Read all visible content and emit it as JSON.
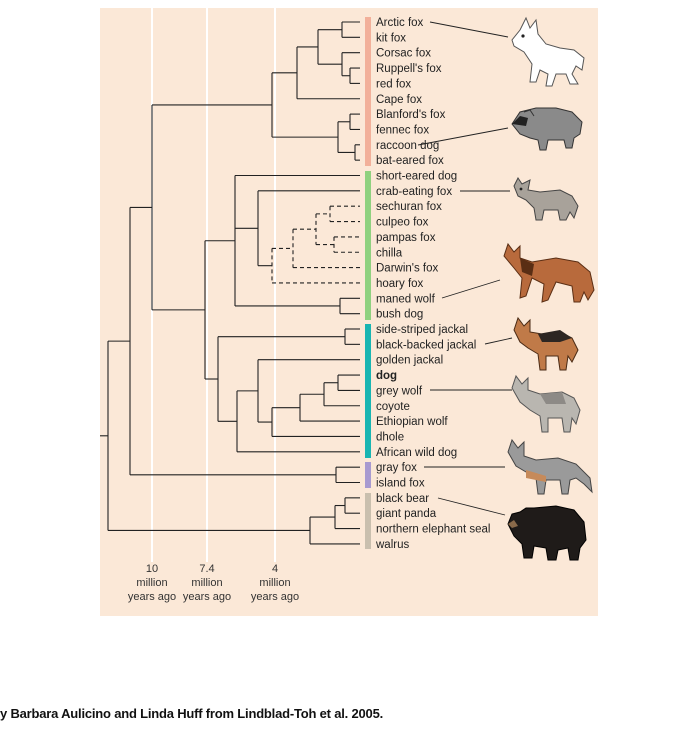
{
  "species": [
    "Arctic fox",
    "kit fox",
    "Corsac fox",
    "Ruppell's fox",
    "red fox",
    "Cape fox",
    "Blanford's fox",
    "fennec fox",
    "raccoon dog",
    "bat-eared fox",
    "short-eared dog",
    "crab-eating fox",
    "sechuran fox",
    "culpeo fox",
    "pampas fox",
    "chilla",
    "Darwin's fox",
    "hoary fox",
    "maned wolf",
    "bush dog",
    "side-striped jackal",
    "black-backed jackal",
    "golden jackal",
    "dog",
    "grey wolf",
    "coyote",
    "Ethiopian wolf",
    "dhole",
    "African wild dog",
    "gray fox",
    "island fox",
    "black bear",
    "giant panda",
    "northern elephant seal",
    "walrus"
  ],
  "highlighted_species": "dog",
  "clade_colors": {
    "red_fox_clade": "#f2b09a",
    "south_american_clade": "#8fd17f",
    "wolf_like_clade": "#19b5b2",
    "gray_fox_clade": "#a89ad0",
    "outgroup": "#c9bfae"
  },
  "time_axis": [
    {
      "value": "10",
      "unit": "million",
      "suffix": "years ago"
    },
    {
      "value": "7.4",
      "unit": "million",
      "suffix": "years ago"
    },
    {
      "value": "4",
      "unit": "million",
      "suffix": "years ago"
    }
  ],
  "illustrations": [
    {
      "name": "arctic-fox-illustration",
      "points_to": "Arctic fox"
    },
    {
      "name": "raccoon-dog-illustration",
      "points_to": "raccoon dog"
    },
    {
      "name": "crab-eating-fox-illustration",
      "points_to": "crab-eating fox"
    },
    {
      "name": "maned-wolf-illustration",
      "points_to": "maned wolf"
    },
    {
      "name": "black-backed-jackal-illustration",
      "points_to": "black-backed jackal"
    },
    {
      "name": "grey-wolf-illustration",
      "points_to": "grey wolf"
    },
    {
      "name": "gray-fox-illustration",
      "points_to": "gray fox"
    },
    {
      "name": "black-bear-illustration",
      "points_to": "black bear"
    }
  ],
  "credit": "y Barbara Aulicino and Linda Huff from Lindblad-Toh et al. 2005."
}
